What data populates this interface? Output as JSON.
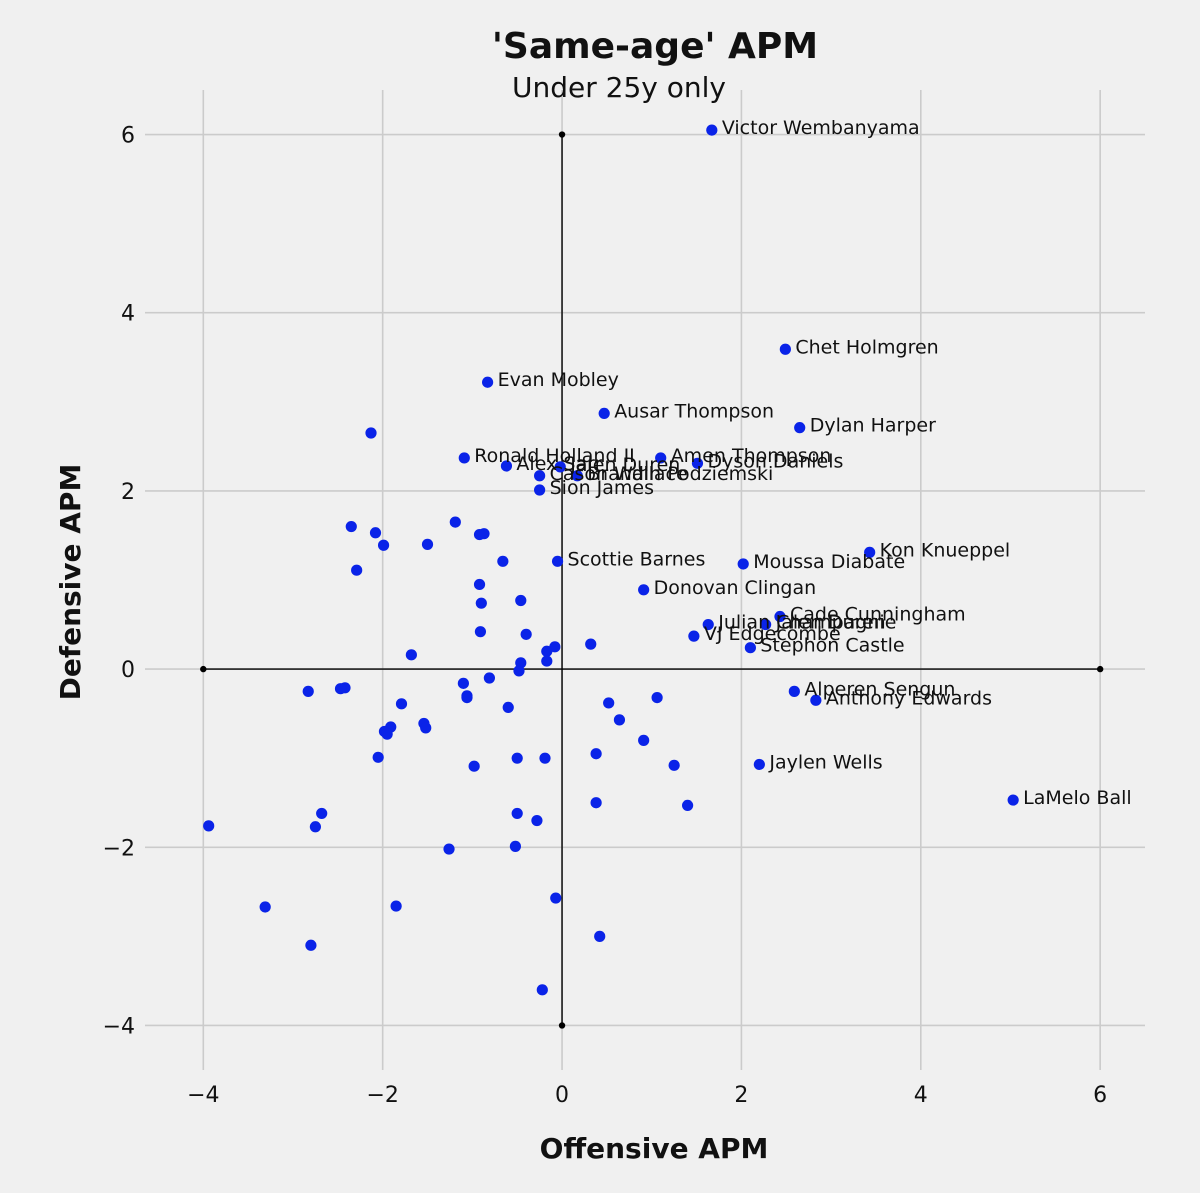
{
  "chart_data": {
    "type": "scatter",
    "title": "'Same-age' APM",
    "subtitle": "Under 25y only",
    "xlabel": "Offensive APM",
    "ylabel": "Defensive APM",
    "xlim": [
      -4.65,
      6.5
    ],
    "ylim": [
      -4.5,
      6.5
    ],
    "xticks": [
      -4,
      -2,
      0,
      2,
      4,
      6
    ],
    "yticks": [
      -4,
      -2,
      0,
      2,
      4,
      6
    ],
    "xtick_labels": [
      "−4",
      "−2",
      "0",
      "2",
      "4",
      "6"
    ],
    "ytick_labels": [
      "−4",
      "−2",
      "0",
      "2",
      "4",
      "6"
    ],
    "color": "#0a23e8",
    "labeled_points": [
      {
        "label": "Victor Wembanyama",
        "x": 1.67,
        "y": 6.05
      },
      {
        "label": "Chet Holmgren",
        "x": 2.49,
        "y": 3.59
      },
      {
        "label": "Evan Mobley",
        "x": -0.83,
        "y": 3.22
      },
      {
        "label": "Ausar Thompson",
        "x": 0.47,
        "y": 2.87
      },
      {
        "label": "Dylan Harper",
        "x": 2.65,
        "y": 2.71
      },
      {
        "label": "Ronald Holland II",
        "x": -1.09,
        "y": 2.37
      },
      {
        "label": "Amen Thompson",
        "x": 1.1,
        "y": 2.37
      },
      {
        "label": "Dyson Daniels",
        "x": 1.51,
        "y": 2.31
      },
      {
        "label": "Alex Sarr",
        "x": -0.62,
        "y": 2.28
      },
      {
        "label": "Jalen Duren",
        "x": -0.02,
        "y": 2.27
      },
      {
        "label": "Cason Wallace",
        "x": -0.25,
        "y": 2.17
      },
      {
        "label": "Brandin Podziemski",
        "x": 0.17,
        "y": 2.17
      },
      {
        "label": "Sion James",
        "x": -0.25,
        "y": 2.01
      },
      {
        "label": "Kon Knueppel",
        "x": 3.43,
        "y": 1.31
      },
      {
        "label": "Scottie Barnes",
        "x": -0.05,
        "y": 1.21
      },
      {
        "label": "Moussa Diabate",
        "x": 2.02,
        "y": 1.18
      },
      {
        "label": "Donovan Clingan",
        "x": 0.91,
        "y": 0.89
      },
      {
        "label": "Cade Cunningham",
        "x": 2.43,
        "y": 0.59
      },
      {
        "label": "Julian Champagnie",
        "x": 1.63,
        "y": 0.5
      },
      {
        "label": "Jalen Duren",
        "x": 2.27,
        "y": 0.5
      },
      {
        "label": "VJ Edgecombe",
        "x": 1.47,
        "y": 0.37
      },
      {
        "label": "Stephon Castle",
        "x": 2.1,
        "y": 0.24
      },
      {
        "label": "Alperen Sengun",
        "x": 2.59,
        "y": -0.25
      },
      {
        "label": "Anthony Edwards",
        "x": 2.83,
        "y": -0.35
      },
      {
        "label": "Jaylen Wells",
        "x": 2.2,
        "y": -1.07
      },
      {
        "label": "LaMelo Ball",
        "x": 5.03,
        "y": -1.47
      }
    ],
    "points": [
      {
        "x": -2.13,
        "y": 2.65
      },
      {
        "x": -1.19,
        "y": 1.65
      },
      {
        "x": -2.35,
        "y": 1.6
      },
      {
        "x": -2.08,
        "y": 1.53
      },
      {
        "x": -0.87,
        "y": 1.52
      },
      {
        "x": -0.92,
        "y": 1.51
      },
      {
        "x": -1.99,
        "y": 1.39
      },
      {
        "x": -1.5,
        "y": 1.4
      },
      {
        "x": -0.66,
        "y": 1.21
      },
      {
        "x": -2.29,
        "y": 1.11
      },
      {
        "x": -0.92,
        "y": 0.95
      },
      {
        "x": -0.46,
        "y": 0.77
      },
      {
        "x": -0.9,
        "y": 0.74
      },
      {
        "x": -0.91,
        "y": 0.42
      },
      {
        "x": -0.4,
        "y": 0.39
      },
      {
        "x": 0.32,
        "y": 0.28
      },
      {
        "x": -0.08,
        "y": 0.25
      },
      {
        "x": -0.17,
        "y": 0.2
      },
      {
        "x": -1.68,
        "y": 0.16
      },
      {
        "x": -0.17,
        "y": 0.09
      },
      {
        "x": -0.46,
        "y": 0.07
      },
      {
        "x": -0.48,
        "y": -0.02
      },
      {
        "x": -0.81,
        "y": -0.1
      },
      {
        "x": -1.1,
        "y": -0.16
      },
      {
        "x": -2.42,
        "y": -0.21
      },
      {
        "x": -2.47,
        "y": -0.22
      },
      {
        "x": -2.83,
        "y": -0.25
      },
      {
        "x": -1.06,
        "y": -0.3
      },
      {
        "x": -1.06,
        "y": -0.32
      },
      {
        "x": 1.06,
        "y": -0.32
      },
      {
        "x": 0.52,
        "y": -0.38
      },
      {
        "x": -1.79,
        "y": -0.39
      },
      {
        "x": -0.6,
        "y": -0.43
      },
      {
        "x": 0.64,
        "y": -0.57
      },
      {
        "x": -1.54,
        "y": -0.61
      },
      {
        "x": -1.91,
        "y": -0.65
      },
      {
        "x": -1.52,
        "y": -0.66
      },
      {
        "x": -1.98,
        "y": -0.7
      },
      {
        "x": -1.95,
        "y": -0.73
      },
      {
        "x": 0.91,
        "y": -0.8
      },
      {
        "x": 0.38,
        "y": -0.95
      },
      {
        "x": -2.05,
        "y": -0.99
      },
      {
        "x": -0.5,
        "y": -1.0
      },
      {
        "x": -0.19,
        "y": -1.0
      },
      {
        "x": -0.98,
        "y": -1.09
      },
      {
        "x": 1.25,
        "y": -1.08
      },
      {
        "x": 0.38,
        "y": -1.5
      },
      {
        "x": 1.4,
        "y": -1.53
      },
      {
        "x": -0.5,
        "y": -1.62
      },
      {
        "x": -2.68,
        "y": -1.62
      },
      {
        "x": -0.28,
        "y": -1.7
      },
      {
        "x": -2.75,
        "y": -1.77
      },
      {
        "x": -3.94,
        "y": -1.76
      },
      {
        "x": -0.52,
        "y": -1.99
      },
      {
        "x": -1.26,
        "y": -2.02
      },
      {
        "x": -0.07,
        "y": -2.57
      },
      {
        "x": -1.85,
        "y": -2.66
      },
      {
        "x": -3.31,
        "y": -2.67
      },
      {
        "x": 0.42,
        "y": -3.0
      },
      {
        "x": -2.8,
        "y": -3.1
      },
      {
        "x": -0.22,
        "y": -3.6
      }
    ]
  }
}
